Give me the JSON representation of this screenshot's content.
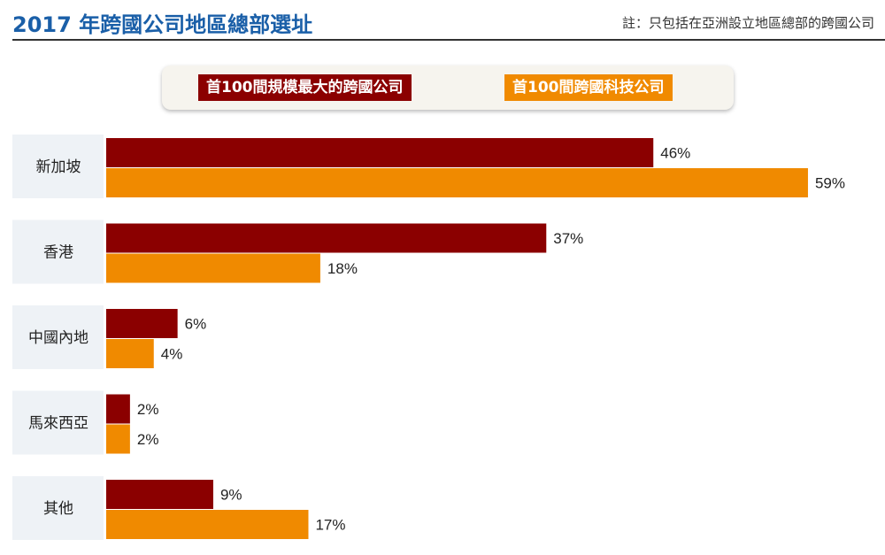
{
  "header": {
    "title": "2017 年跨國公司地區總部選址",
    "note": "註：只包括在亞洲設立地區總部的跨國公司"
  },
  "colors": {
    "series_0": "#8b0000",
    "series_1": "#f08a00",
    "category_bg": "#eef2f6",
    "title": "#1a5fa8"
  },
  "chart_data": {
    "type": "bar",
    "orientation": "horizontal",
    "categories": [
      "新加坡",
      "香港",
      "中國內地",
      "馬來西亞",
      "其他"
    ],
    "series": [
      {
        "name": "首100間規模最大的跨國公司",
        "values": [
          46,
          37,
          6,
          2,
          9
        ]
      },
      {
        "name": "首100間跨國科技公司",
        "values": [
          59,
          18,
          4,
          2,
          17
        ]
      }
    ],
    "data_labels": [
      [
        "46%",
        "37%",
        "6%",
        "2%",
        "9%"
      ],
      [
        "59%",
        "18%",
        "4%",
        "2%",
        "17%"
      ]
    ],
    "unit": "%",
    "xlim": [
      0,
      59
    ],
    "legend_position": "top-center",
    "grid": false
  }
}
